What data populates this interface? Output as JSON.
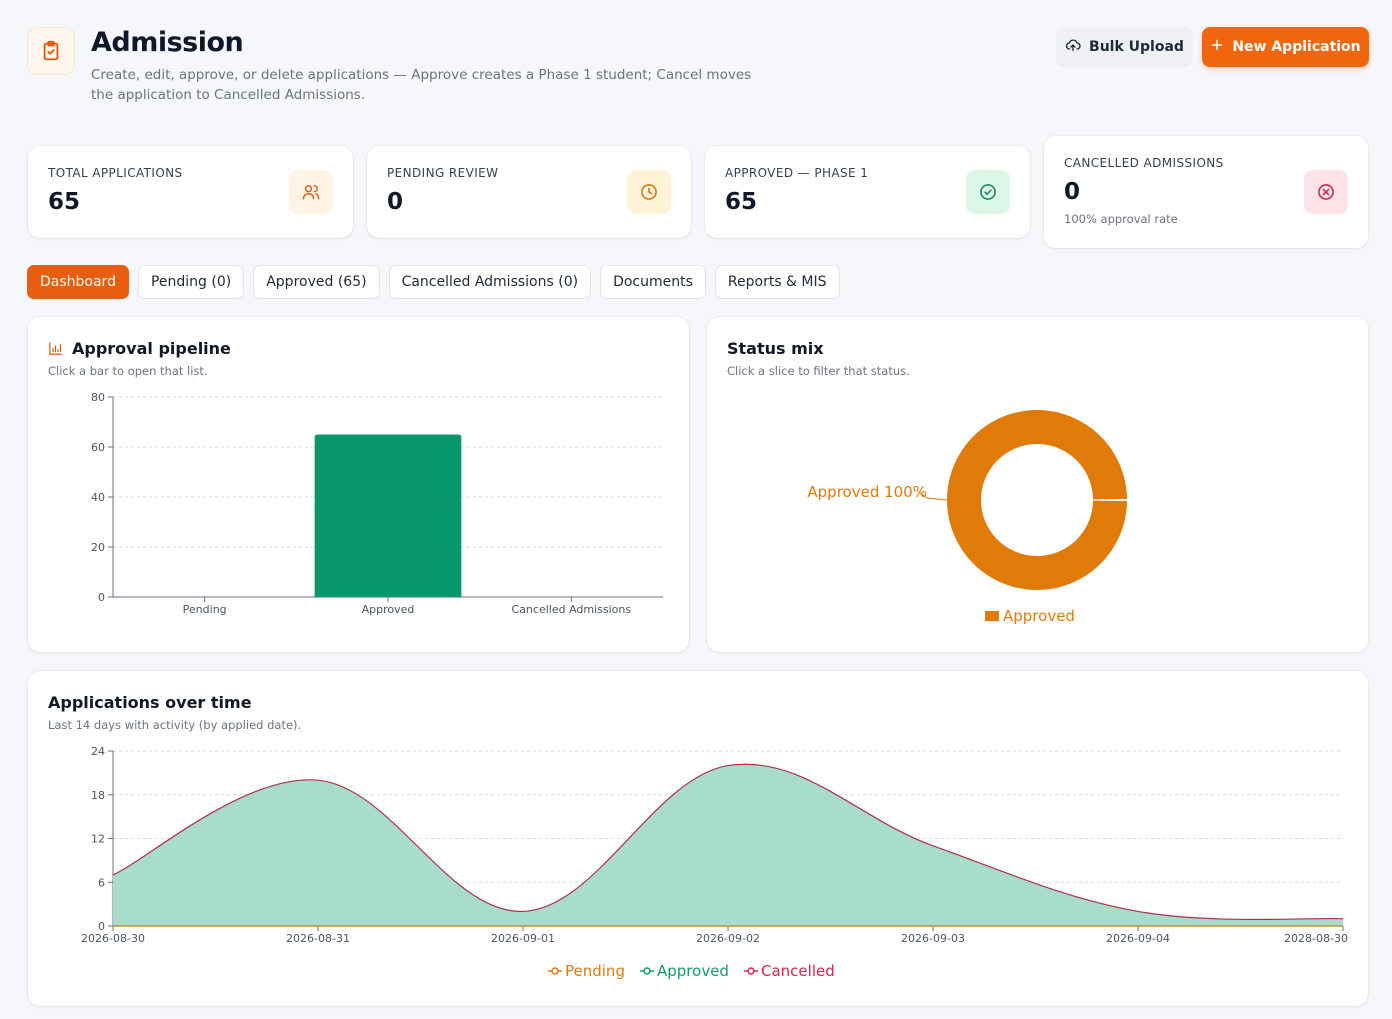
{
  "header": {
    "title": "Admission",
    "subtitle": "Create, edit, approve, or delete applications — Approve creates a Phase 1 student; Cancel moves the application to Cancelled Admissions.",
    "bulk_upload_label": "Bulk Upload",
    "new_application_label": "New Application"
  },
  "stats": {
    "total": {
      "label": "TOTAL APPLICATIONS",
      "value": "65"
    },
    "pending": {
      "label": "PENDING REVIEW",
      "value": "0"
    },
    "approved": {
      "label": "APPROVED — PHASE 1",
      "value": "65"
    },
    "cancelled": {
      "label": "CANCELLED ADMISSIONS",
      "value": "0",
      "note": "100% approval rate"
    }
  },
  "tabs": [
    "Dashboard",
    "Pending (0)",
    "Approved (65)",
    "Cancelled Admissions (0)",
    "Documents",
    "Reports & MIS"
  ],
  "pipeline": {
    "title": "Approval pipeline",
    "subtitle": "Click a bar to open that list."
  },
  "status_mix": {
    "title": "Status mix",
    "subtitle": "Click a slice to filter that status."
  },
  "over_time": {
    "title": "Applications over time",
    "subtitle": "Last 14 days with activity (by applied date)."
  },
  "colors": {
    "accent": "#f2650f",
    "approved_bar": "#07976a",
    "approved_slice": "#e07a09",
    "area_fill": "#a8dccb",
    "area_line": "#b0304a",
    "pending": "#e07a09",
    "approved": "#129a6e",
    "cancelled": "#d3244c"
  },
  "chart_data": [
    {
      "type": "bar",
      "title": "Approval pipeline",
      "categories": [
        "Pending",
        "Approved",
        "Cancelled Admissions"
      ],
      "values": [
        0,
        65,
        0
      ],
      "ylim": [
        0,
        80
      ],
      "yticks": [
        0,
        20,
        40,
        60,
        80
      ],
      "grid": true
    },
    {
      "type": "pie",
      "title": "Status mix",
      "donut": true,
      "slices": [
        {
          "name": "Approved",
          "value": 100,
          "label": "Approved 100%"
        }
      ],
      "legend": [
        "Approved"
      ],
      "legend_placement": "bottom"
    },
    {
      "type": "area",
      "title": "Applications over time",
      "x": [
        "2026-08-30",
        "2026-08-31",
        "2026-09-01",
        "2026-09-02",
        "2026-09-03",
        "2026-09-04",
        "2028-08-30"
      ],
      "series": [
        {
          "name": "Pending",
          "values": [
            0,
            0,
            0,
            0,
            0,
            0,
            0
          ]
        },
        {
          "name": "Approved",
          "values": [
            7,
            20,
            2,
            22,
            11,
            2,
            1
          ]
        },
        {
          "name": "Cancelled",
          "values": [
            0,
            0,
            0,
            0,
            0,
            0,
            0
          ]
        }
      ],
      "ylim": [
        0,
        24
      ],
      "yticks": [
        0,
        6,
        12,
        18,
        24
      ],
      "grid": true,
      "legend_placement": "bottom"
    }
  ]
}
